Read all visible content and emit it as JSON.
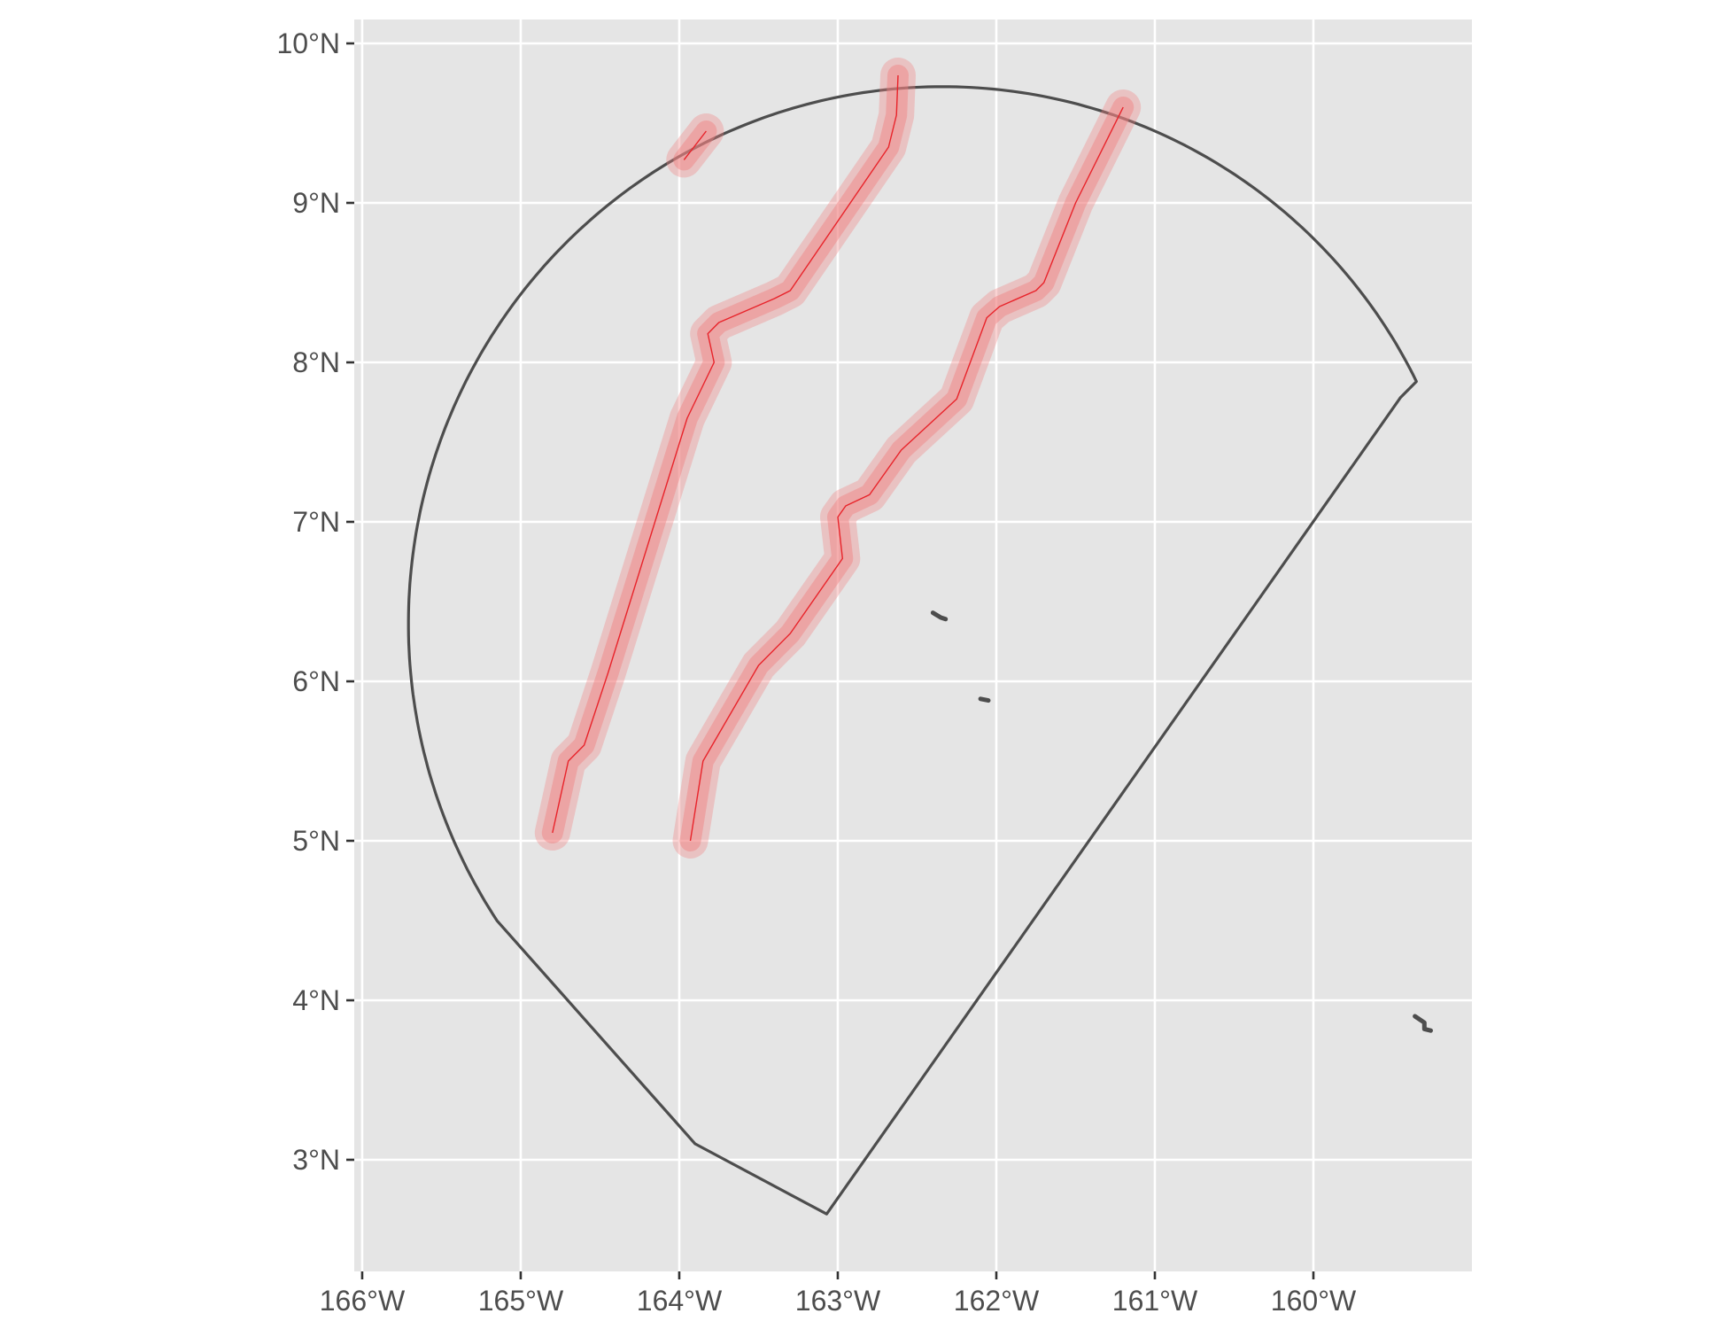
{
  "chart_data": {
    "type": "map",
    "title": "",
    "xlabel": "",
    "ylabel": "",
    "grid": true,
    "background_color": "#e5e5e5",
    "grid_color": "#ffffff",
    "lon_range": [
      -166.05,
      -159.0
    ],
    "lat_range": [
      2.3,
      10.15
    ],
    "x_ticks": [
      {
        "value": -166,
        "label": "166°W"
      },
      {
        "value": -165,
        "label": "165°W"
      },
      {
        "value": -164,
        "label": "164°W"
      },
      {
        "value": -163,
        "label": "163°W"
      },
      {
        "value": -162,
        "label": "162°W"
      },
      {
        "value": -161,
        "label": "161°W"
      },
      {
        "value": -160,
        "label": "160°W"
      }
    ],
    "y_ticks": [
      {
        "value": 3,
        "label": "3°N"
      },
      {
        "value": 4,
        "label": "4°N"
      },
      {
        "value": 5,
        "label": "5°N"
      },
      {
        "value": 6,
        "label": "6°N"
      },
      {
        "value": 7,
        "label": "7°N"
      },
      {
        "value": 8,
        "label": "8°N"
      },
      {
        "value": 9,
        "label": "9°N"
      },
      {
        "value": 10,
        "label": "10°N"
      }
    ],
    "boundary": {
      "color": "#4d4d4d",
      "arc_center": [
        -162.3,
        6.4
      ],
      "arc_start": [
        -165.15,
        4.5
      ],
      "arc_end": [
        -159.35,
        7.88
      ],
      "polygon_tail": [
        [
          -159.35,
          7.88
        ],
        [
          -159.45,
          7.78
        ],
        [
          -163.07,
          2.66
        ],
        [
          -163.9,
          3.1
        ],
        [
          -165.15,
          4.5
        ]
      ]
    },
    "tracks": {
      "line_color": "#e8232a",
      "buffer_color": "#f08080",
      "series": [
        {
          "points": [
            [
              -163.97,
              9.27
            ],
            [
              -163.83,
              9.45
            ]
          ]
        },
        {
          "points": [
            [
              -162.62,
              9.8
            ],
            [
              -162.63,
              9.55
            ],
            [
              -162.68,
              9.35
            ],
            [
              -163.3,
              8.45
            ],
            [
              -163.4,
              8.4
            ],
            [
              -163.75,
              8.25
            ],
            [
              -163.82,
              8.18
            ],
            [
              -163.78,
              8.0
            ],
            [
              -163.95,
              7.65
            ],
            [
              -164.45,
              6.05
            ],
            [
              -164.6,
              5.6
            ],
            [
              -164.7,
              5.5
            ],
            [
              -164.8,
              5.05
            ]
          ]
        },
        {
          "points": [
            [
              -161.2,
              9.6
            ],
            [
              -161.5,
              9.0
            ],
            [
              -161.7,
              8.5
            ],
            [
              -161.75,
              8.45
            ],
            [
              -161.98,
              8.35
            ],
            [
              -162.06,
              8.28
            ],
            [
              -162.25,
              7.77
            ],
            [
              -162.6,
              7.45
            ],
            [
              -162.8,
              7.17
            ],
            [
              -162.95,
              7.1
            ],
            [
              -163.0,
              7.03
            ],
            [
              -162.97,
              6.77
            ],
            [
              -163.3,
              6.3
            ],
            [
              -163.5,
              6.1
            ],
            [
              -163.85,
              5.5
            ],
            [
              -163.93,
              5.0
            ]
          ]
        }
      ]
    },
    "islands": [
      {
        "points": [
          [
            -162.4,
            6.43
          ],
          [
            -162.35,
            6.4
          ],
          [
            -162.32,
            6.39
          ]
        ]
      },
      {
        "points": [
          [
            -162.1,
            5.89
          ],
          [
            -162.05,
            5.88
          ]
        ]
      },
      {
        "points": [
          [
            -159.36,
            3.9
          ],
          [
            -159.3,
            3.86
          ],
          [
            -159.3,
            3.82
          ],
          [
            -159.26,
            3.81
          ]
        ]
      }
    ]
  }
}
